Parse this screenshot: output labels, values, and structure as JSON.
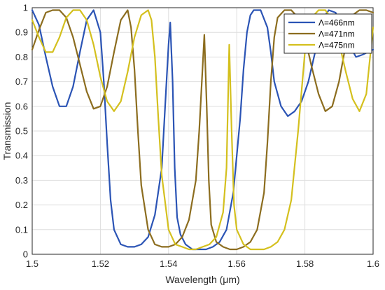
{
  "chart_data": {
    "type": "line",
    "title": "",
    "xlabel": "Wavelength (μm)",
    "ylabel": "Transmission",
    "xlim": [
      1.5,
      1.6
    ],
    "ylim": [
      0,
      1
    ],
    "x_ticks": [
      "1.5",
      "1.52",
      "1.54",
      "1.56",
      "1.58",
      "1.6"
    ],
    "y_ticks": [
      "0",
      "0.1",
      "0.2",
      "0.3",
      "0.4",
      "0.5",
      "0.6",
      "0.7",
      "0.8",
      "0.9",
      "1"
    ],
    "grid": true,
    "legend_position": "top-right",
    "series": [
      {
        "name": "Λ=466nm",
        "color": "#2b54b5",
        "x": [
          1.5,
          1.502,
          1.504,
          1.506,
          1.508,
          1.51,
          1.512,
          1.514,
          1.516,
          1.518,
          1.52,
          1.521,
          1.522,
          1.523,
          1.524,
          1.526,
          1.528,
          1.53,
          1.532,
          1.534,
          1.536,
          1.538,
          1.539,
          1.54,
          1.5405,
          1.5412,
          1.5418,
          1.5425,
          1.5435,
          1.545,
          1.547,
          1.549,
          1.551,
          1.553,
          1.555,
          1.557,
          1.559,
          1.561,
          1.562,
          1.563,
          1.564,
          1.565,
          1.567,
          1.569,
          1.57,
          1.571,
          1.573,
          1.575,
          1.577,
          1.579,
          1.581,
          1.583,
          1.585,
          1.587,
          1.589,
          1.591,
          1.593,
          1.595,
          1.597,
          1.6
        ],
        "y": [
          0.99,
          0.93,
          0.8,
          0.68,
          0.6,
          0.6,
          0.68,
          0.82,
          0.95,
          0.99,
          0.9,
          0.7,
          0.45,
          0.22,
          0.1,
          0.04,
          0.03,
          0.03,
          0.04,
          0.07,
          0.16,
          0.35,
          0.6,
          0.85,
          0.94,
          0.7,
          0.35,
          0.15,
          0.08,
          0.04,
          0.02,
          0.02,
          0.02,
          0.03,
          0.05,
          0.1,
          0.25,
          0.55,
          0.75,
          0.9,
          0.97,
          0.99,
          0.99,
          0.92,
          0.82,
          0.7,
          0.6,
          0.56,
          0.58,
          0.62,
          0.7,
          0.82,
          0.95,
          0.99,
          0.98,
          0.92,
          0.85,
          0.8,
          0.81,
          0.83
        ]
      },
      {
        "name": "Λ=471nm",
        "color": "#8c6d1f",
        "x": [
          1.5,
          1.502,
          1.504,
          1.506,
          1.508,
          1.51,
          1.512,
          1.514,
          1.516,
          1.518,
          1.52,
          1.522,
          1.524,
          1.526,
          1.528,
          1.529,
          1.53,
          1.531,
          1.532,
          1.534,
          1.536,
          1.538,
          1.54,
          1.542,
          1.544,
          1.546,
          1.548,
          1.549,
          1.5505,
          1.5512,
          1.5518,
          1.5525,
          1.554,
          1.556,
          1.558,
          1.56,
          1.562,
          1.564,
          1.566,
          1.568,
          1.569,
          1.57,
          1.571,
          1.572,
          1.574,
          1.576,
          1.578,
          1.58,
          1.582,
          1.584,
          1.586,
          1.588,
          1.59,
          1.592,
          1.594,
          1.596,
          1.598,
          1.6
        ],
        "y": [
          0.83,
          0.91,
          0.98,
          0.99,
          0.99,
          0.96,
          0.88,
          0.77,
          0.66,
          0.59,
          0.6,
          0.68,
          0.82,
          0.95,
          0.99,
          0.92,
          0.75,
          0.5,
          0.28,
          0.1,
          0.04,
          0.03,
          0.03,
          0.04,
          0.07,
          0.14,
          0.3,
          0.5,
          0.89,
          0.6,
          0.3,
          0.12,
          0.05,
          0.03,
          0.02,
          0.02,
          0.03,
          0.05,
          0.1,
          0.25,
          0.45,
          0.7,
          0.88,
          0.96,
          0.99,
          0.99,
          0.96,
          0.88,
          0.76,
          0.65,
          0.58,
          0.6,
          0.7,
          0.85,
          0.97,
          0.99,
          0.99,
          0.98
        ]
      },
      {
        "name": "Λ=475nm",
        "color": "#d4c01e",
        "x": [
          1.5,
          1.502,
          1.504,
          1.506,
          1.508,
          1.51,
          1.512,
          1.514,
          1.516,
          1.518,
          1.52,
          1.522,
          1.524,
          1.526,
          1.528,
          1.53,
          1.532,
          1.534,
          1.535,
          1.536,
          1.537,
          1.538,
          1.54,
          1.542,
          1.544,
          1.546,
          1.548,
          1.55,
          1.552,
          1.554,
          1.556,
          1.557,
          1.5578,
          1.5585,
          1.5592,
          1.56,
          1.562,
          1.564,
          1.566,
          1.568,
          1.57,
          1.572,
          1.574,
          1.576,
          1.578,
          1.58,
          1.582,
          1.584,
          1.586,
          1.588,
          1.59,
          1.592,
          1.594,
          1.596,
          1.598,
          1.6
        ],
        "y": [
          0.95,
          0.88,
          0.82,
          0.82,
          0.88,
          0.96,
          0.99,
          0.99,
          0.95,
          0.85,
          0.72,
          0.62,
          0.58,
          0.62,
          0.74,
          0.88,
          0.97,
          0.99,
          0.95,
          0.8,
          0.55,
          0.32,
          0.1,
          0.04,
          0.03,
          0.02,
          0.02,
          0.03,
          0.04,
          0.07,
          0.17,
          0.35,
          0.85,
          0.5,
          0.2,
          0.1,
          0.04,
          0.02,
          0.02,
          0.02,
          0.03,
          0.05,
          0.1,
          0.22,
          0.5,
          0.82,
          0.96,
          0.99,
          0.99,
          0.95,
          0.86,
          0.74,
          0.63,
          0.58,
          0.65,
          0.92
        ]
      }
    ]
  }
}
